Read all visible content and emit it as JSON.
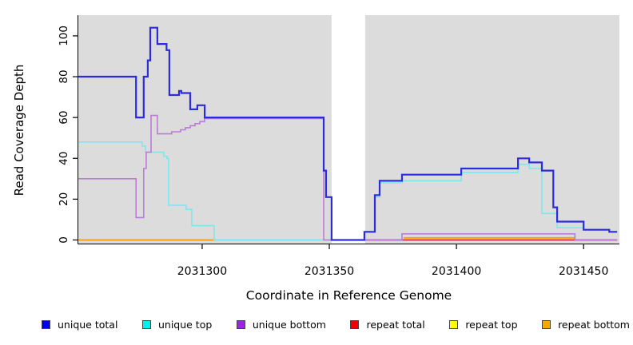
{
  "figure": {
    "ylabel": "Read Coverage Depth",
    "xlabel": "Coordinate in Reference Genome"
  },
  "legend": {
    "items": [
      {
        "label": "unique total",
        "color": "#0000EE"
      },
      {
        "label": "unique top",
        "color": "#00EEEE"
      },
      {
        "label": "unique bottom",
        "color": "#A020F0"
      },
      {
        "label": "repeat total",
        "color": "#EE0000"
      },
      {
        "label": "repeat top",
        "color": "#FFFF00"
      },
      {
        "label": "repeat bottom",
        "color": "#FFA500"
      }
    ]
  },
  "chart_data": {
    "type": "line",
    "subtype": "step-after-coverage-plot",
    "title": "",
    "xlabel": "Coordinate in Reference Genome",
    "ylabel": "Read Coverage Depth",
    "xlim": [
      2031251,
      2031464
    ],
    "ylim": [
      0,
      110
    ],
    "x_tick_values": [
      2031300,
      2031350,
      2031400,
      2031450
    ],
    "x_tick_labels": [
      "2031300",
      "2031350",
      "2031400",
      "2031450"
    ],
    "y_tick_values": [
      0,
      20,
      40,
      60,
      80,
      100
    ],
    "y_tick_labels": [
      "0",
      "20",
      "40",
      "60",
      "80",
      "100"
    ],
    "plot_background": "#DCDCDC",
    "gap_region": {
      "x_start": 2031350.9,
      "x_end": 2031364.1,
      "color": "#FFFFFF"
    },
    "grid": "off",
    "legend_position": "bottom",
    "series": [
      {
        "name": "repeat total",
        "line_color": "#CC2A5A",
        "width": 1.8,
        "segments": [
          [
            [
              2031364.1,
              0
            ],
            [
              2031463.2,
              0
            ]
          ]
        ]
      },
      {
        "name": "repeat top",
        "line_color": "#FFFF00",
        "width": 1.6,
        "segments": []
      },
      {
        "name": "repeat bottom",
        "line_color": "#FF9E10",
        "width": 2.0,
        "segments": [
          [
            [
              2031251.3,
              0
            ],
            [
              2031305.3,
              0
            ]
          ],
          [
            [
              2031379.2,
              1
            ],
            [
              2031446.6,
              1
            ]
          ]
        ]
      },
      {
        "name": "(unlabeled green baseline)",
        "line_color": "#8FD98F",
        "width": 1.6,
        "segments": [
          [
            [
              2031305.3,
              0
            ],
            [
              2031350.9,
              0
            ]
          ]
        ]
      },
      {
        "name": "unique top",
        "line_color": "#7FE6EE",
        "width": 1.6,
        "segments": [
          [
            [
              2031251.3,
              48
            ],
            [
              2031276.4,
              46
            ],
            [
              2031277.7,
              43
            ],
            [
              2031284.9,
              41
            ],
            [
              2031286.2,
              40
            ],
            [
              2031286.8,
              17
            ],
            [
              2031293.7,
              15
            ],
            [
              2031295.9,
              7
            ],
            [
              2031304.7,
              0
            ],
            [
              2031363.8,
              4
            ],
            [
              2031367.9,
              21
            ],
            [
              2031369.8,
              28
            ],
            [
              2031378.6,
              29
            ],
            [
              2031401.9,
              33
            ],
            [
              2031424.2,
              37
            ],
            [
              2031428.6,
              35
            ],
            [
              2031433.6,
              13
            ],
            [
              2031439.6,
              6
            ],
            [
              2031450,
              5
            ],
            [
              2031460.1,
              4
            ],
            [
              2031463.2,
              4
            ]
          ]
        ]
      },
      {
        "name": "unique bottom",
        "line_color": "#BB7CD6",
        "width": 1.6,
        "segments": [
          [
            [
              2031251.3,
              30
            ],
            [
              2031274,
              11
            ],
            [
              2031277,
              35
            ],
            [
              2031278,
              43
            ],
            [
              2031279.9,
              61
            ],
            [
              2031282.4,
              52
            ],
            [
              2031288,
              53
            ],
            [
              2031291.5,
              54
            ],
            [
              2031293.4,
              55
            ],
            [
              2031295.3,
              56
            ],
            [
              2031297.2,
              57
            ],
            [
              2031299.1,
              58
            ],
            [
              2031300.9,
              59.5
            ],
            [
              2031347.8,
              0
            ],
            [
              2031378.6,
              3
            ],
            [
              2031446.6,
              0
            ],
            [
              2031463.2,
              0
            ]
          ]
        ]
      },
      {
        "name": "unique total",
        "line_color": "#2B2BDF",
        "width": 2.2,
        "segments": [
          [
            [
              2031251.3,
              80
            ],
            [
              2031274,
              60
            ],
            [
              2031277,
              80
            ],
            [
              2031278.6,
              88
            ],
            [
              2031279.6,
              104
            ],
            [
              2031282.4,
              96
            ],
            [
              2031286,
              93
            ],
            [
              2031287.1,
              71
            ],
            [
              2031290.9,
              73
            ],
            [
              2031291.8,
              72
            ],
            [
              2031295.3,
              64
            ],
            [
              2031298.1,
              66
            ],
            [
              2031301,
              60
            ],
            [
              2031347.8,
              34
            ],
            [
              2031348.7,
              21
            ],
            [
              2031350.9,
              0
            ],
            [
              2031363.8,
              4
            ],
            [
              2031367.9,
              22
            ],
            [
              2031369.8,
              29
            ],
            [
              2031378.6,
              32
            ],
            [
              2031401.9,
              35
            ],
            [
              2031424.2,
              40
            ],
            [
              2031428.6,
              38
            ],
            [
              2031433.6,
              34
            ],
            [
              2031438.1,
              16
            ],
            [
              2031439.6,
              9
            ],
            [
              2031450,
              5
            ],
            [
              2031460.1,
              4
            ],
            [
              2031463.2,
              4
            ]
          ]
        ]
      }
    ]
  }
}
